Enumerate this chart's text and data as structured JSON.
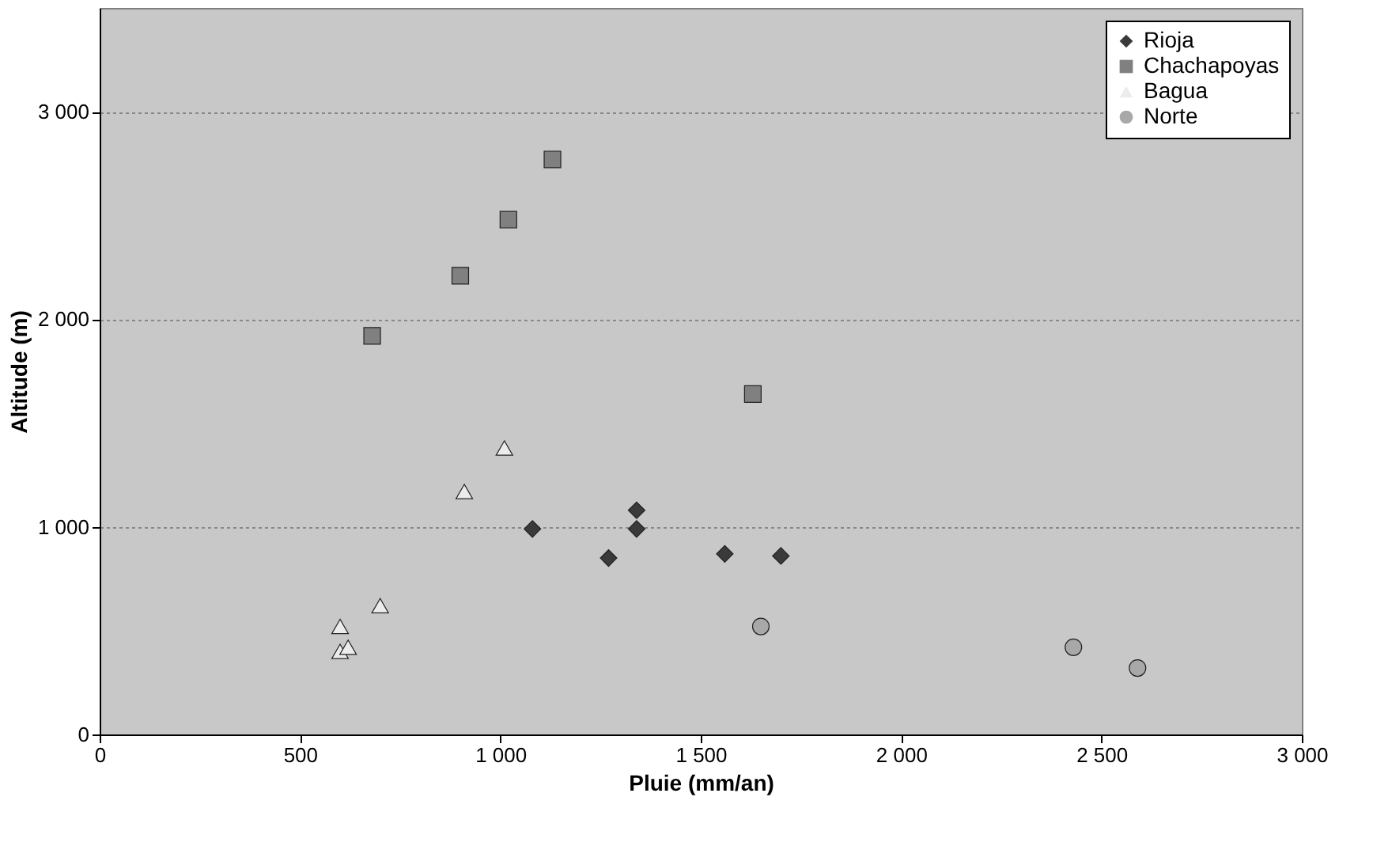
{
  "chart_data": {
    "type": "scatter",
    "xlabel": "Pluie (mm/an)",
    "ylabel": "Altitude (m)",
    "xlim": [
      0,
      3000
    ],
    "xticks": [
      0,
      500,
      {
        "value": 1000,
        "label": "1 000"
      },
      {
        "value": 1500,
        "label": "1 500"
      },
      {
        "value": 2000,
        "label": "2 000"
      },
      {
        "value": 2500,
        "label": "2 500"
      },
      {
        "value": 3000,
        "label": "3 000"
      }
    ],
    "ylim": [
      0,
      3500
    ],
    "yticks": [
      0,
      {
        "value": 1000,
        "label": "1 000"
      },
      {
        "value": 2000,
        "label": "2 000"
      },
      {
        "value": 3000,
        "label": "3 000"
      }
    ],
    "grid": "y",
    "legend": "top right",
    "series": [
      {
        "name": "Rioja",
        "color": "#3a3a3a",
        "marker": "diamond",
        "x": [
          1080,
          1270,
          1340,
          1340,
          1560,
          1700
        ],
        "values": [
          990,
          850,
          1080,
          990,
          870,
          860
        ]
      },
      {
        "name": "Chachapoyas",
        "color": "#808080",
        "marker": "square",
        "x": [
          680,
          900,
          1020,
          1130,
          1630
        ],
        "values": [
          1920,
          2210,
          2480,
          2770,
          1640
        ]
      },
      {
        "name": "Bagua",
        "color": "#ececec",
        "marker": "triangle",
        "x": [
          600,
          600,
          620,
          700,
          910,
          1010
        ],
        "values": [
          520,
          400,
          420,
          620,
          1170,
          1380
        ]
      },
      {
        "name": "Norte",
        "color": "#a8a8a8",
        "marker": "circle",
        "x": [
          1650,
          2430,
          2590
        ],
        "values": [
          520,
          420,
          320
        ]
      }
    ]
  }
}
